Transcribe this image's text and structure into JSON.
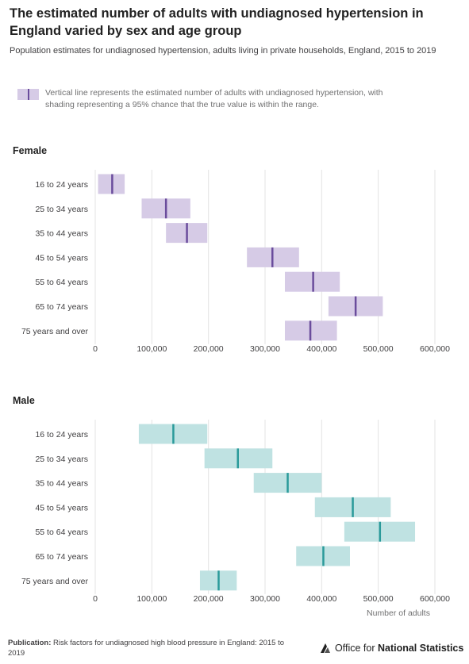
{
  "title": "The estimated number of adults with undiagnosed hypertension in England varied by sex and age group",
  "subtitle": "Population estimates for undiagnosed hypertension, adults living in private households, England, 2015 to 2019",
  "legend_text": "Vertical line represents the estimated number of adults with undiagnosed hypertension, with shading representing a 95% chance that the true value is within the range.",
  "footer": {
    "publication_label": "Publication:",
    "publication_text": "Risk factors for undiagnosed high blood pressure in England: 2015 to 2019"
  },
  "logo": {
    "text_plain": "Office for",
    "text_bold": "National Statistics"
  },
  "colors": {
    "female_fill": "#d6cbe6",
    "female_line": "#6a4c9c",
    "male_fill": "#bfe2e2",
    "male_line": "#2a9a9a",
    "grid": "#e3e3e3",
    "text": "#414042"
  },
  "chart_data": [
    {
      "type": "range",
      "title": "Female",
      "categories": [
        "16 to 24 years",
        "25 to 34 years",
        "35 to 44 years",
        "45 to 54 years",
        "55 to 64 years",
        "65 to 74 years",
        "75 years and over"
      ],
      "estimate": [
        30000,
        125000,
        162000,
        313000,
        385000,
        460000,
        380000
      ],
      "lower": [
        5000,
        82000,
        125000,
        268000,
        335000,
        412000,
        335000
      ],
      "upper": [
        52000,
        168000,
        198000,
        360000,
        432000,
        508000,
        427000
      ],
      "xlim": [
        0,
        600000
      ],
      "xticks": [
        "0",
        "100,000",
        "200,000",
        "300,000",
        "400,000",
        "500,000",
        "600,000"
      ],
      "xtick_values": [
        0,
        100000,
        200000,
        300000,
        400000,
        500000,
        600000
      ],
      "xlabel": "",
      "grid": true
    },
    {
      "type": "range",
      "title": "Male",
      "categories": [
        "16 to 24 years",
        "25 to 34 years",
        "35 to 44 years",
        "45 to 54 years",
        "55 to 64 years",
        "65 to 74 years",
        "75 years and over"
      ],
      "estimate": [
        138000,
        252000,
        340000,
        455000,
        503000,
        403000,
        218000
      ],
      "lower": [
        77000,
        193000,
        280000,
        388000,
        440000,
        355000,
        185000
      ],
      "upper": [
        198000,
        313000,
        400000,
        522000,
        565000,
        450000,
        250000
      ],
      "xlim": [
        0,
        600000
      ],
      "xticks": [
        "0",
        "100,000",
        "200,000",
        "300,000",
        "400,000",
        "500,000",
        "600,000"
      ],
      "xtick_values": [
        0,
        100000,
        200000,
        300000,
        400000,
        500000,
        600000
      ],
      "xlabel": "Number of adults",
      "grid": true
    }
  ]
}
